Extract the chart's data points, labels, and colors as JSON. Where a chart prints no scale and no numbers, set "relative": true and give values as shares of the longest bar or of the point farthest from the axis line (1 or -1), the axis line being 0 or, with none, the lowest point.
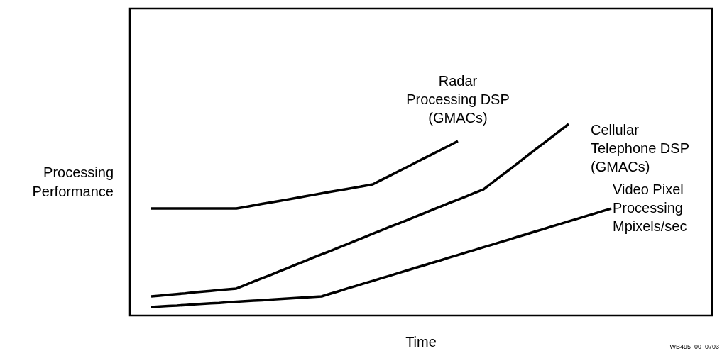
{
  "chart_data": {
    "type": "line",
    "relative": true,
    "xlabel": "Time",
    "ylabel": "Processing\nPerformance",
    "legend": false,
    "marker": "none",
    "line_style": "solid",
    "categories": [
      null,
      null,
      null,
      null,
      null,
      null,
      null,
      null,
      null,
      null,
      null,
      null,
      null,
      null,
      null,
      null,
      null,
      null,
      null,
      null,
      null,
      null,
      null,
      null,
      null,
      null,
      null,
      null,
      null,
      null,
      null,
      null,
      null,
      null,
      null,
      null,
      null,
      null,
      null,
      null,
      null,
      null,
      null,
      null,
      null,
      null,
      null,
      null,
      null,
      null,
      null,
      null,
      null,
      null,
      null
    ],
    "series": [
      {
        "name": "Radar\nProcessing DSP\n(GMACs)",
        "color": "#000000",
        "values": [
          0.559,
          0.559,
          0.559,
          0.559,
          0.559,
          0.559,
          0.559,
          0.559,
          0.559,
          0.559,
          0.559,
          0.567,
          0.575,
          0.583,
          0.591,
          0.598,
          0.606,
          0.614,
          0.622,
          0.63,
          0.638,
          0.646,
          0.654,
          0.661,
          0.669,
          0.677,
          0.685,
          0.708,
          0.73,
          0.753,
          0.775,
          0.798,
          0.821,
          0.843,
          0.866,
          0.888,
          0.911,
          null,
          null,
          null,
          null,
          null,
          null,
          null,
          null,
          null,
          null,
          null,
          null,
          null,
          null,
          null,
          null,
          null,
          null
        ]
      },
      {
        "name": "Cellular\nTelephone DSP\n(GMACs)",
        "color": "#000000",
        "values": [
          0.1,
          0.104,
          0.108,
          0.112,
          0.116,
          0.121,
          0.125,
          0.129,
          0.133,
          0.137,
          0.141,
          0.159,
          0.177,
          0.195,
          0.212,
          0.23,
          0.248,
          0.266,
          0.284,
          0.302,
          0.32,
          0.337,
          0.355,
          0.373,
          0.391,
          0.409,
          0.427,
          0.445,
          0.463,
          0.48,
          0.498,
          0.516,
          0.534,
          0.552,
          0.57,
          0.588,
          0.605,
          0.623,
          0.641,
          0.659,
          0.693,
          0.727,
          0.761,
          0.795,
          0.83,
          0.864,
          0.898,
          0.932,
          0.966,
          1,
          null,
          null,
          null,
          null,
          null
        ]
      },
      {
        "name": "Video Pixel\nProcessing\nMpixels/sec",
        "color": "#000000",
        "values": [
          0.044,
          0.047,
          0.05,
          0.052,
          0.055,
          0.058,
          0.061,
          0.064,
          0.066,
          0.069,
          0.072,
          0.075,
          0.078,
          0.08,
          0.083,
          0.086,
          0.089,
          0.092,
          0.094,
          0.097,
          0.1,
          0.114,
          0.127,
          0.141,
          0.154,
          0.168,
          0.181,
          0.195,
          0.208,
          0.222,
          0.235,
          0.249,
          0.262,
          0.276,
          0.289,
          0.303,
          0.316,
          0.33,
          0.343,
          0.357,
          0.37,
          0.384,
          0.397,
          0.411,
          0.424,
          0.438,
          0.451,
          0.465,
          0.478,
          0.492,
          0.505,
          0.519,
          0.532,
          0.546,
          0.559
        ]
      }
    ],
    "annotations": [
      "WB495_00_0703"
    ]
  }
}
